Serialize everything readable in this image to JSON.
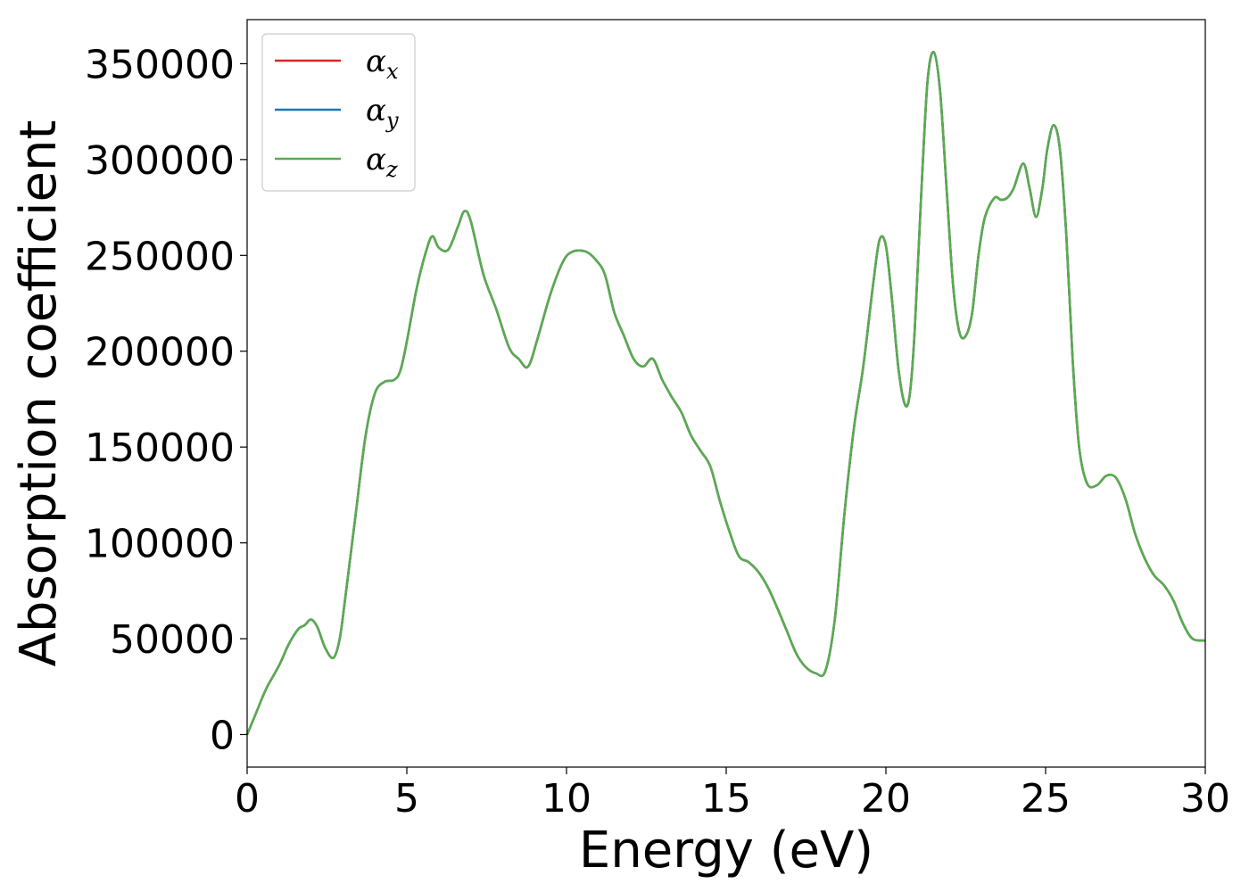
{
  "chart_data": {
    "type": "line",
    "title": "",
    "xlabel": "Energy (eV)",
    "ylabel": "Absorption coefficient",
    "xlim": [
      0,
      30
    ],
    "ylim": [
      -17000,
      373000
    ],
    "xticks": [
      0,
      5,
      10,
      15,
      20,
      25,
      30
    ],
    "yticks": [
      0,
      50000,
      100000,
      150000,
      200000,
      250000,
      300000,
      350000
    ],
    "grid": false,
    "legend": "top-left",
    "colors": {
      "x": "#d62728",
      "y": "#1f77b4",
      "z": "#5aab4e"
    },
    "x": [
      0,
      0.3,
      0.6,
      1.0,
      1.3,
      1.6,
      1.8,
      2.0,
      2.2,
      2.45,
      2.7,
      2.9,
      3.1,
      3.4,
      3.7,
      4.0,
      4.3,
      4.6,
      4.8,
      5.0,
      5.3,
      5.6,
      5.8,
      6.0,
      6.3,
      6.6,
      6.8,
      7.0,
      7.4,
      7.8,
      8.2,
      8.5,
      8.8,
      9.1,
      9.5,
      9.9,
      10.2,
      10.6,
      10.9,
      11.2,
      11.5,
      11.8,
      12.1,
      12.4,
      12.7,
      13.0,
      13.3,
      13.6,
      13.9,
      14.2,
      14.5,
      14.8,
      15.1,
      15.4,
      15.7,
      16.0,
      16.3,
      16.6,
      16.9,
      17.2,
      17.5,
      17.8,
      18.1,
      18.4,
      18.7,
      19.0,
      19.3,
      19.6,
      19.8,
      20.0,
      20.2,
      20.4,
      20.6,
      20.75,
      20.9,
      21.1,
      21.3,
      21.5,
      21.7,
      21.9,
      22.1,
      22.3,
      22.5,
      22.7,
      22.9,
      23.1,
      23.4,
      23.6,
      23.8,
      24.0,
      24.3,
      24.5,
      24.7,
      24.9,
      25.05,
      25.25,
      25.45,
      25.65,
      25.85,
      26.05,
      26.3,
      26.6,
      26.9,
      27.2,
      27.5,
      27.8,
      28.1,
      28.4,
      28.7,
      29.0,
      29.3,
      29.6,
      30.0
    ],
    "series": [
      {
        "name": "α_x",
        "color": "#d62728",
        "values": [
          0,
          12000,
          24000,
          36000,
          47000,
          55000,
          57000,
          60000,
          56000,
          45000,
          40000,
          50000,
          75000,
          115000,
          155000,
          178000,
          184000,
          185000,
          190000,
          205000,
          232000,
          252000,
          260000,
          254000,
          253000,
          265000,
          273000,
          268000,
          240000,
          222000,
          202000,
          196000,
          192000,
          207000,
          230000,
          247000,
          252000,
          252000,
          248000,
          240000,
          220000,
          208000,
          196000,
          192000,
          196000,
          185000,
          176000,
          168000,
          156000,
          148000,
          140000,
          122000,
          106000,
          93000,
          90000,
          85000,
          77000,
          66000,
          54000,
          42000,
          35000,
          32000,
          33000,
          60000,
          115000,
          160000,
          193000,
          235000,
          258000,
          255000,
          225000,
          190000,
          172000,
          178000,
          210000,
          280000,
          340000,
          356000,
          335000,
          285000,
          235000,
          210000,
          208000,
          220000,
          250000,
          270000,
          280000,
          279000,
          280000,
          285000,
          298000,
          285000,
          270000,
          285000,
          305000,
          318000,
          305000,
          260000,
          195000,
          150000,
          131000,
          130000,
          135000,
          134000,
          123000,
          105000,
          92000,
          83000,
          78000,
          70000,
          58000,
          50000,
          49000
        ]
      },
      {
        "name": "α_y",
        "color": "#1f77b4",
        "values": [
          0,
          12000,
          24000,
          36000,
          47000,
          55000,
          57000,
          60000,
          56000,
          45000,
          40000,
          50000,
          75000,
          115000,
          155000,
          178000,
          184000,
          185000,
          190000,
          205000,
          232000,
          252000,
          260000,
          254000,
          253000,
          265000,
          273000,
          268000,
          240000,
          222000,
          202000,
          196000,
          192000,
          207000,
          230000,
          247000,
          252000,
          252000,
          248000,
          240000,
          220000,
          208000,
          196000,
          192000,
          196000,
          185000,
          176000,
          168000,
          156000,
          148000,
          140000,
          122000,
          106000,
          93000,
          90000,
          85000,
          77000,
          66000,
          54000,
          42000,
          35000,
          32000,
          33000,
          60000,
          115000,
          160000,
          193000,
          235000,
          258000,
          255000,
          225000,
          190000,
          172000,
          178000,
          210000,
          280000,
          340000,
          356000,
          335000,
          285000,
          235000,
          210000,
          208000,
          220000,
          250000,
          270000,
          280000,
          279000,
          280000,
          285000,
          298000,
          285000,
          270000,
          285000,
          305000,
          318000,
          305000,
          260000,
          195000,
          150000,
          131000,
          130000,
          135000,
          134000,
          123000,
          105000,
          92000,
          83000,
          78000,
          70000,
          58000,
          50000,
          49000
        ]
      },
      {
        "name": "α_z",
        "color": "#5aab4e",
        "values": [
          0,
          12000,
          24000,
          36000,
          47000,
          55000,
          57000,
          60000,
          56000,
          45000,
          40000,
          50000,
          75000,
          115000,
          155000,
          178000,
          184000,
          185000,
          190000,
          205000,
          232000,
          252000,
          260000,
          254000,
          253000,
          265000,
          273000,
          268000,
          240000,
          222000,
          202000,
          196000,
          192000,
          207000,
          230000,
          247000,
          252000,
          252000,
          248000,
          240000,
          220000,
          208000,
          196000,
          192000,
          196000,
          185000,
          176000,
          168000,
          156000,
          148000,
          140000,
          122000,
          106000,
          93000,
          90000,
          85000,
          77000,
          66000,
          54000,
          42000,
          35000,
          32000,
          33000,
          60000,
          115000,
          160000,
          193000,
          235000,
          258000,
          255000,
          225000,
          190000,
          172000,
          178000,
          210000,
          280000,
          340000,
          356000,
          335000,
          285000,
          235000,
          210000,
          208000,
          220000,
          250000,
          270000,
          280000,
          279000,
          280000,
          285000,
          298000,
          285000,
          270000,
          285000,
          305000,
          318000,
          305000,
          260000,
          195000,
          150000,
          131000,
          130000,
          135000,
          134000,
          123000,
          105000,
          92000,
          83000,
          78000,
          70000,
          58000,
          50000,
          49000
        ]
      }
    ],
    "legend_entries": [
      {
        "base": "α",
        "sub": "x"
      },
      {
        "base": "α",
        "sub": "y"
      },
      {
        "base": "α",
        "sub": "z"
      }
    ]
  }
}
